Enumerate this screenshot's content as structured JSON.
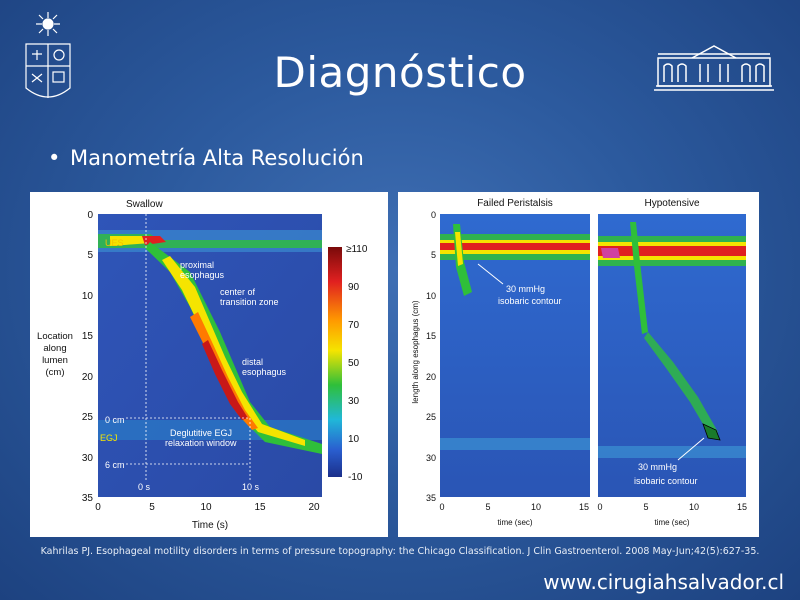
{
  "slide": {
    "title": "Diagnóstico",
    "bullet": "Manometría Alta Resolución",
    "citation": "Kahrilas PJ. Esophageal motility disorders in terms of pressure topography: the Chicago Classification. J Clin Gastroenterol. 2008 May-Jun;42(5):627-35.",
    "website": "www.cirugiahsalvador.cl"
  },
  "left_figure": {
    "header": "Swallow",
    "ylabel_lines": [
      "Location",
      "along",
      "lumen",
      "(cm)"
    ],
    "xlabel": "Time (s)",
    "yticks": [
      "0",
      "5",
      "10",
      "15",
      "20",
      "25",
      "30",
      "35"
    ],
    "xticks": [
      "0",
      "5",
      "10",
      "15",
      "20"
    ],
    "colorbar_ticks": [
      "≥110",
      "90",
      "70",
      "50",
      "30",
      "10",
      "-10"
    ],
    "labels": {
      "ues": "UES",
      "proximal": "proximal",
      "esophagus": "esophagus",
      "center": "center of",
      "transition": "transition zone",
      "distal": "distal",
      "distal_esophagus": "esophagus",
      "zero_cm": "0 cm",
      "egj": "EGJ",
      "deglutitive": "Deglutitive EGJ",
      "relaxation": "relaxation window",
      "six_cm": "6 cm",
      "zero_s": "0 s",
      "ten_s": "10 s"
    }
  },
  "right_figure": {
    "panel1_title": "Failed Peristalsis",
    "panel2_title": "Hypotensive",
    "ylabel": "length along esophagus (cm)",
    "xlabel": "time (sec)",
    "yticks": [
      "0",
      "5",
      "10",
      "15",
      "20",
      "25",
      "30",
      "35"
    ],
    "xticks": [
      "0",
      "5",
      "10",
      "15"
    ],
    "annotation1_line1": "30 mmHg",
    "annotation1_line2": "isobaric contour",
    "annotation2_line1": "30 mmHg",
    "annotation2_line2": "isobaric contour"
  },
  "colors": {
    "background": "#2c5a9e",
    "plot_blue": "#2f5bb8",
    "plot_dark_blue": "#1d3a8f"
  }
}
